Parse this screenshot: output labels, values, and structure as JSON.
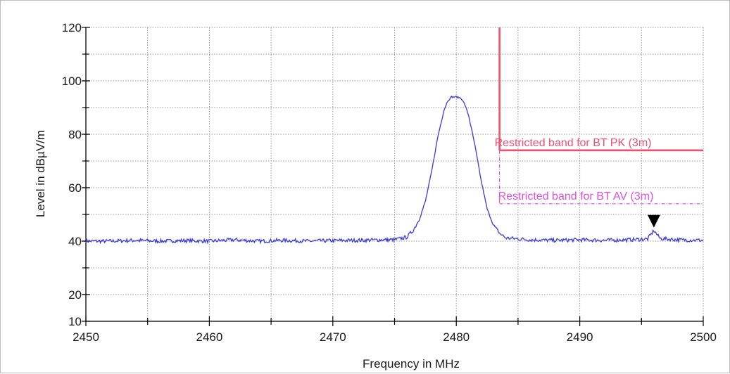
{
  "chart_data": {
    "type": "line",
    "title": "",
    "xlabel": "Frequency in MHz",
    "ylabel": "Level in dBµV/m",
    "xlim": [
      2450,
      2500
    ],
    "ylim": [
      10,
      120
    ],
    "x_ticks": [
      2450,
      2460,
      2470,
      2480,
      2490,
      2500
    ],
    "x_tick_labels": [
      "2450",
      "2460",
      "2470",
      "2480",
      "2490",
      "2500"
    ],
    "y_ticks": [
      10,
      20,
      40,
      60,
      80,
      100,
      120
    ],
    "y_tick_labels": [
      "10",
      "20",
      "40",
      "60",
      "80",
      "100",
      "120"
    ],
    "grid": true,
    "series": [
      {
        "color": "#3b3bdc",
        "x": [
          2450,
          2452,
          2454,
          2456,
          2458,
          2460,
          2462,
          2464,
          2466,
          2468,
          2470,
          2472,
          2474,
          2475,
          2476,
          2476.5,
          2477,
          2477.5,
          2478,
          2478.5,
          2479,
          2479.3,
          2479.6,
          2480,
          2480.4,
          2480.7,
          2481,
          2481.5,
          2482,
          2482.5,
          2483,
          2483.5,
          2484,
          2486,
          2488,
          2490,
          2492,
          2494,
          2495.5,
          2496,
          2496.5,
          2498,
          2500
        ],
        "y": [
          40,
          40,
          40.3,
          40,
          40.2,
          40,
          40.5,
          40,
          40.3,
          40,
          40.2,
          40.3,
          40.5,
          40.5,
          41.5,
          44,
          48,
          55,
          66,
          79,
          89,
          92.5,
          94,
          94,
          93.5,
          91,
          87,
          76,
          63,
          52,
          46,
          43,
          41.2,
          40.5,
          40.3,
          40.5,
          40.3,
          40.5,
          40.8,
          44,
          41,
          40.5,
          40.3
        ]
      }
    ],
    "limit_lines": [
      {
        "label": "Restricted band for  BT  PK (3m)",
        "color": "#f0506e",
        "start_mhz": 2483.5,
        "end_mhz": 2500,
        "level": 74,
        "top_level": 120
      },
      {
        "label": "Restricted band for  BT  AV (3m)",
        "color": "#e050e0",
        "start_mhz": 2483.5,
        "end_mhz": 2500,
        "level": 54,
        "top_level": 74
      }
    ],
    "markers": [
      {
        "x": 2496,
        "y": 44,
        "symbol": "down-triangle",
        "color": "#000000"
      }
    ]
  }
}
